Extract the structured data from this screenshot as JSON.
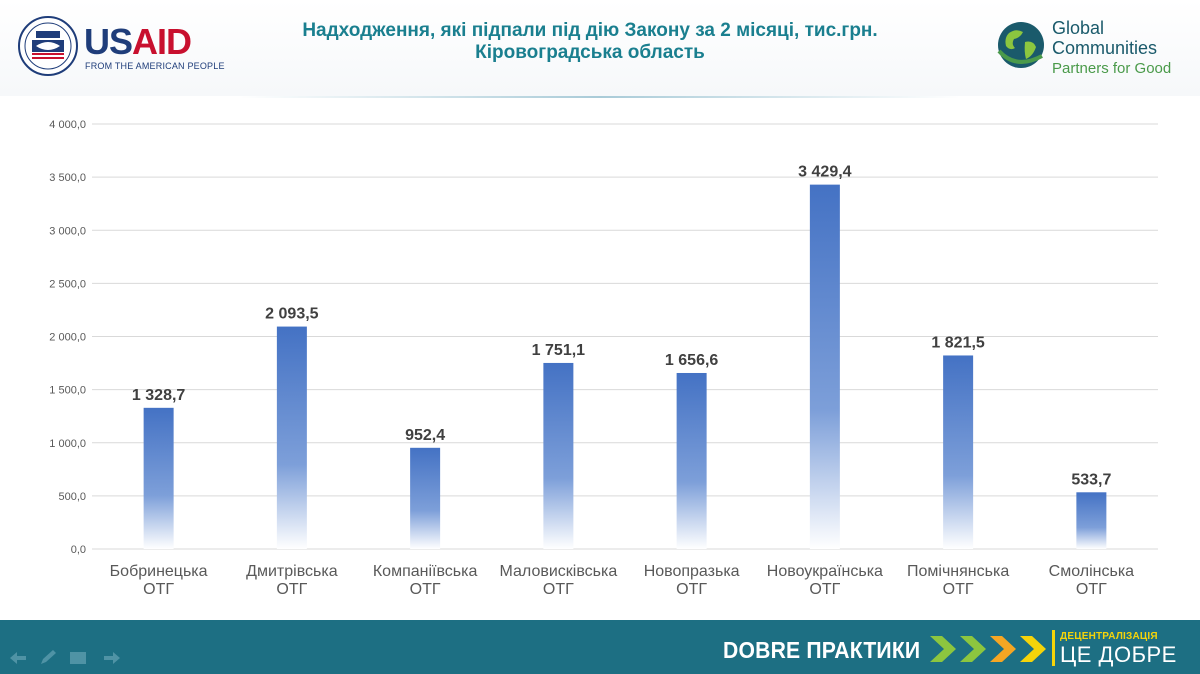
{
  "header": {
    "title_line1": "Надходження, які підпали під дію Закону за 2 місяці, тис.грн.",
    "title_line2": "Кіровоградська  область"
  },
  "logos": {
    "usaid_us": "US",
    "usaid_aid": "AID",
    "usaid_tagline": "FROM THE AMERICAN PEOPLE",
    "gc_line1": "Global",
    "gc_line2": "Communities",
    "gc_line3": "Partners for Good"
  },
  "footer": {
    "label": "DOBRE ПРАКТИКИ",
    "decentralization_line1": "ДЕЦЕНТРАЛІЗАЦІЯ",
    "decentralization_line2": "ЦЕ ДОБРЕ"
  },
  "colors": {
    "bar": "#4472c4",
    "title": "#1a7f8f",
    "footer_bg": "#1d6f83",
    "accent_yellow": "#f5d40a"
  },
  "chart_data": {
    "type": "bar",
    "title": "Надходження, які підпали під дію Закону за 2 місяці, тис.грн. Кіровоградська область",
    "categories": [
      [
        "Бобринецька",
        "ОТГ"
      ],
      [
        "Дмитрівська",
        "ОТГ"
      ],
      [
        "Компаніївська",
        "ОТГ"
      ],
      [
        "Маловисківська",
        "ОТГ"
      ],
      [
        "Новопразька",
        "ОТГ"
      ],
      [
        "Новоукраїнська",
        "ОТГ"
      ],
      [
        "Помічнянська",
        "ОТГ"
      ],
      [
        "Смолінська",
        "ОТГ"
      ]
    ],
    "values": [
      1328.7,
      2093.5,
      952.4,
      1751.1,
      1656.6,
      3429.4,
      1821.5,
      533.7
    ],
    "value_labels": [
      "1 328,7",
      "2 093,5",
      "952,4",
      "1 751,1",
      "1 656,6",
      "3 429,4",
      "1 821,5",
      "533,7"
    ],
    "y_ticks": [
      0,
      500,
      1000,
      1500,
      2000,
      2500,
      3000,
      3500,
      4000
    ],
    "y_tick_labels": [
      "0,0",
      "500,0",
      "1 000,0",
      "1 500,0",
      "2 000,0",
      "2 500,0",
      "3 000,0",
      "3 500,0",
      "4 000,0"
    ],
    "ylim": [
      0,
      4000
    ],
    "xlabel": "",
    "ylabel": "",
    "grid": true,
    "legend": "none"
  }
}
